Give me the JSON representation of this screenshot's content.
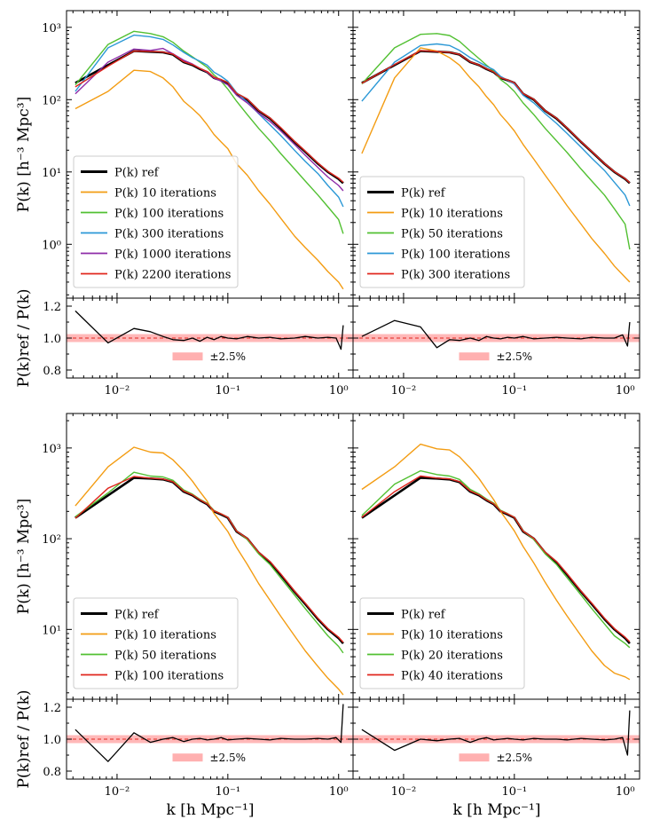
{
  "figure": {
    "ylabel_pk": "P(k) [h⁻³ Mpc³]",
    "ylabel_ratio": "P(k)ref / P(k)",
    "xlabel": "k [h Mpc⁻¹]",
    "band_label": "±2.5%"
  },
  "colors": {
    "ref": "#000000",
    "orange": "#f39c12",
    "green": "#52c032",
    "blue": "#2b98d6",
    "purple": "#8e2ca8",
    "red": "#e0261e",
    "band": "#ffb0b0",
    "dashed": "#e0261e"
  },
  "chart_data": [
    {
      "type": "line",
      "panel": "top-left",
      "xscale": "log",
      "yscale": "log",
      "xlim": [
        0.0035,
        1.35
      ],
      "ylim": [
        0.18,
        1700
      ],
      "yticks": [
        {
          "v": 1,
          "label": "10⁰"
        },
        {
          "v": 10,
          "label": "10¹"
        },
        {
          "v": 100,
          "label": "10²"
        },
        {
          "v": 1000,
          "label": "10³"
        }
      ],
      "legend_loc": "lower-left",
      "x": [
        0.0042,
        0.0083,
        0.0142,
        0.02,
        0.026,
        0.032,
        0.04,
        0.048,
        0.056,
        0.065,
        0.075,
        0.087,
        0.1,
        0.12,
        0.15,
        0.19,
        0.24,
        0.3,
        0.4,
        0.5,
        0.65,
        0.8,
        1.0,
        1.1
      ],
      "series": [
        {
          "name": "P(k) ref",
          "color": "ref",
          "width": 2.6,
          "values": [
            170,
            300,
            470,
            460,
            450,
            420,
            330,
            300,
            265,
            240,
            200,
            185,
            170,
            120,
            100,
            70,
            55,
            40,
            26,
            19,
            13,
            10,
            8,
            7
          ]
        },
        {
          "name": "P(k) 10 iterations",
          "color": "orange",
          "width": 1.4,
          "values": [
            75,
            130,
            255,
            245,
            200,
            150,
            95,
            75,
            60,
            45,
            33,
            26,
            21,
            13,
            9,
            5.5,
            3.6,
            2.3,
            1.3,
            0.9,
            0.6,
            0.42,
            0.3,
            0.24
          ]
        },
        {
          "name": "P(k) 100 iterations",
          "color": "green",
          "width": 1.4,
          "values": [
            160,
            580,
            880,
            820,
            740,
            620,
            470,
            390,
            330,
            280,
            220,
            180,
            140,
            95,
            62,
            40,
            27,
            18,
            11,
            7.5,
            4.8,
            3.3,
            2.2,
            1.4
          ]
        },
        {
          "name": "P(k) 300 iterations",
          "color": "blue",
          "width": 1.4,
          "values": [
            130,
            520,
            780,
            740,
            680,
            570,
            450,
            380,
            340,
            300,
            240,
            210,
            180,
            125,
            92,
            64,
            45,
            32,
            20,
            14,
            9.5,
            6.5,
            4.5,
            3.3
          ]
        },
        {
          "name": "P(k) 1000 iterations",
          "color": "purple",
          "width": 1.4,
          "values": [
            120,
            330,
            500,
            480,
            510,
            430,
            350,
            310,
            270,
            240,
            200,
            180,
            160,
            115,
            90,
            65,
            50,
            37,
            24,
            17,
            11.5,
            8.5,
            6.5,
            5.5
          ]
        },
        {
          "name": "P(k) 2200 iterations",
          "color": "red",
          "width": 1.4,
          "values": [
            150,
            290,
            470,
            465,
            455,
            425,
            335,
            305,
            270,
            245,
            205,
            190,
            172,
            122,
            102,
            71,
            56,
            41,
            26.5,
            19.5,
            13.3,
            10.2,
            8.2,
            7.2
          ]
        }
      ]
    },
    {
      "type": "line",
      "panel": "top-right",
      "xscale": "log",
      "yscale": "log",
      "xlim": [
        0.0035,
        1.35
      ],
      "ylim": [
        0.18,
        1700
      ],
      "legend_loc": "lower-left",
      "x": [
        0.0042,
        0.0083,
        0.0142,
        0.02,
        0.026,
        0.032,
        0.04,
        0.048,
        0.056,
        0.065,
        0.075,
        0.087,
        0.1,
        0.12,
        0.15,
        0.19,
        0.24,
        0.3,
        0.4,
        0.5,
        0.65,
        0.8,
        1.0,
        1.1
      ],
      "series": [
        {
          "name": "P(k) ref",
          "color": "ref",
          "width": 2.6,
          "values": [
            170,
            300,
            470,
            460,
            450,
            420,
            330,
            300,
            265,
            240,
            200,
            185,
            170,
            120,
            100,
            70,
            55,
            40,
            26,
            19,
            13,
            10,
            8,
            7
          ]
        },
        {
          "name": "P(k) 10 iterations",
          "color": "orange",
          "width": 1.4,
          "values": [
            18,
            200,
            520,
            470,
            380,
            300,
            200,
            150,
            110,
            85,
            62,
            48,
            37,
            24,
            15,
            9,
            5.5,
            3.4,
            1.9,
            1.2,
            0.75,
            0.5,
            0.35,
            0.3
          ]
        },
        {
          "name": "P(k) 50 iterations",
          "color": "green",
          "width": 1.4,
          "values": [
            165,
            520,
            800,
            820,
            770,
            640,
            470,
            370,
            300,
            250,
            190,
            160,
            130,
            90,
            62,
            40,
            27,
            18.5,
            11,
            7.5,
            4.8,
            3.1,
            1.9,
            0.85
          ]
        },
        {
          "name": "P(k) 100 iterations",
          "color": "blue",
          "width": 1.4,
          "values": [
            95,
            330,
            560,
            590,
            560,
            480,
            380,
            330,
            290,
            260,
            210,
            185,
            165,
            115,
            90,
            64,
            47,
            34,
            22,
            15.5,
            10.5,
            7.2,
            4.8,
            3.4
          ]
        },
        {
          "name": "P(k) 300 iterations",
          "color": "red",
          "width": 1.4,
          "values": [
            168,
            305,
            475,
            462,
            452,
            422,
            333,
            302,
            267,
            242,
            202,
            187,
            171,
            121,
            101,
            70.5,
            55.5,
            40.5,
            26.2,
            19.2,
            13.1,
            10.1,
            8.1,
            7.1
          ]
        }
      ]
    },
    {
      "type": "line",
      "panel": "bottom-left",
      "xscale": "log",
      "yscale": "log",
      "xlim": [
        0.0035,
        1.35
      ],
      "ylim": [
        1.7,
        2400
      ],
      "yticks": [
        {
          "v": 10,
          "label": "10¹"
        },
        {
          "v": 100,
          "label": "10²"
        },
        {
          "v": 1000,
          "label": "10³"
        }
      ],
      "legend_loc": "lower-left",
      "x": [
        0.0042,
        0.0083,
        0.0142,
        0.02,
        0.026,
        0.032,
        0.04,
        0.048,
        0.056,
        0.065,
        0.075,
        0.087,
        0.1,
        0.12,
        0.15,
        0.19,
        0.24,
        0.3,
        0.4,
        0.5,
        0.65,
        0.8,
        1.0,
        1.1
      ],
      "series": [
        {
          "name": "P(k) ref",
          "color": "ref",
          "width": 2.6,
          "values": [
            170,
            300,
            470,
            460,
            450,
            420,
            330,
            300,
            265,
            240,
            200,
            185,
            170,
            120,
            100,
            70,
            55,
            40,
            26,
            19,
            13,
            10,
            8,
            7
          ]
        },
        {
          "name": "P(k) 10 iterations",
          "color": "orange",
          "width": 1.4,
          "values": [
            230,
            620,
            1020,
            900,
            880,
            740,
            560,
            430,
            330,
            260,
            190,
            150,
            120,
            80,
            52,
            32,
            21,
            14,
            8.5,
            5.8,
            3.9,
            2.9,
            2.2,
            1.9
          ]
        },
        {
          "name": "P(k) 50 iterations",
          "color": "green",
          "width": 1.4,
          "values": [
            175,
            320,
            540,
            490,
            480,
            440,
            345,
            310,
            272,
            246,
            205,
            188,
            172,
            122,
            98,
            68,
            52,
            37,
            24,
            17,
            11.5,
            8.5,
            6.5,
            5.5
          ]
        },
        {
          "name": "P(k) 100 iterations",
          "color": "red",
          "width": 1.4,
          "values": [
            168,
            360,
            485,
            465,
            455,
            425,
            335,
            304,
            268,
            243,
            203,
            188,
            172,
            121,
            101,
            71,
            56,
            41,
            26.5,
            19.5,
            13.3,
            10.2,
            8.2,
            7.2
          ]
        }
      ]
    },
    {
      "type": "line",
      "panel": "bottom-right",
      "xscale": "log",
      "yscale": "log",
      "xlim": [
        0.0035,
        1.35
      ],
      "ylim": [
        1.7,
        2400
      ],
      "legend_loc": "lower-left",
      "x": [
        0.0042,
        0.0083,
        0.0142,
        0.02,
        0.026,
        0.032,
        0.04,
        0.048,
        0.056,
        0.065,
        0.075,
        0.087,
        0.1,
        0.12,
        0.15,
        0.19,
        0.24,
        0.3,
        0.4,
        0.5,
        0.65,
        0.8,
        1.0,
        1.1
      ],
      "series": [
        {
          "name": "P(k) ref",
          "color": "ref",
          "width": 2.6,
          "values": [
            170,
            300,
            470,
            460,
            450,
            420,
            330,
            300,
            265,
            240,
            200,
            185,
            170,
            120,
            100,
            70,
            55,
            40,
            26,
            19,
            13,
            10,
            8,
            7
          ]
        },
        {
          "name": "P(k) 10 iterations",
          "color": "orange",
          "width": 1.4,
          "values": [
            350,
            620,
            1100,
            980,
            950,
            800,
            600,
            460,
            350,
            270,
            200,
            155,
            122,
            82,
            54,
            33,
            21,
            14,
            8.5,
            5.8,
            4,
            3.3,
            3,
            2.8
          ]
        },
        {
          "name": "P(k) 20 iterations",
          "color": "green",
          "width": 1.4,
          "values": [
            180,
            400,
            560,
            510,
            490,
            450,
            350,
            312,
            274,
            247,
            206,
            189,
            172,
            122,
            98,
            68,
            52,
            37,
            24,
            17,
            11.5,
            8.5,
            7,
            6.3
          ]
        },
        {
          "name": "P(k) 40 iterations",
          "color": "red",
          "width": 1.4,
          "values": [
            172,
            330,
            490,
            466,
            456,
            426,
            336,
            305,
            268,
            243,
            203,
            188,
            172,
            121,
            101,
            71,
            56,
            41,
            26.5,
            19.5,
            13.3,
            10.2,
            8.2,
            7.3
          ]
        }
      ]
    },
    {
      "type": "line",
      "panel": "ratio-top-left",
      "xscale": "log",
      "xlim": [
        0.0035,
        1.35
      ],
      "ylim": [
        0.75,
        1.25
      ],
      "yticks": [
        {
          "v": 0.8,
          "label": "0.8"
        },
        {
          "v": 1.0,
          "label": "1.0"
        },
        {
          "v": 1.2,
          "label": "1.2"
        }
      ],
      "band": [
        0.975,
        1.025
      ],
      "x": [
        0.0042,
        0.0083,
        0.0142,
        0.02,
        0.026,
        0.032,
        0.04,
        0.048,
        0.056,
        0.065,
        0.075,
        0.087,
        0.1,
        0.12,
        0.15,
        0.19,
        0.24,
        0.3,
        0.4,
        0.5,
        0.65,
        0.8,
        0.95,
        1.05,
        1.1
      ],
      "values": [
        1.17,
        0.97,
        1.06,
        1.04,
        1.01,
        0.99,
        0.985,
        1.0,
        0.98,
        1.005,
        0.99,
        1.01,
        1.0,
        0.995,
        1.01,
        1.0,
        1.005,
        0.995,
        1.0,
        1.01,
        1.0,
        1.005,
        1.0,
        0.93,
        1.08
      ]
    },
    {
      "type": "line",
      "panel": "ratio-top-right",
      "xscale": "log",
      "xlim": [
        0.0035,
        1.35
      ],
      "ylim": [
        0.75,
        1.25
      ],
      "band": [
        0.975,
        1.025
      ],
      "x": [
        0.0042,
        0.0083,
        0.0142,
        0.02,
        0.026,
        0.032,
        0.04,
        0.048,
        0.056,
        0.065,
        0.075,
        0.087,
        0.1,
        0.12,
        0.15,
        0.19,
        0.24,
        0.3,
        0.4,
        0.5,
        0.65,
        0.8,
        0.95,
        1.05,
        1.1
      ],
      "values": [
        1.01,
        1.11,
        1.07,
        0.94,
        0.99,
        0.985,
        1.0,
        0.985,
        1.01,
        1.0,
        0.995,
        1.005,
        1.0,
        1.01,
        0.995,
        1.0,
        1.005,
        1.0,
        0.995,
        1.005,
        1.0,
        1.0,
        1.02,
        0.95,
        1.1
      ]
    },
    {
      "type": "line",
      "panel": "ratio-bottom-left",
      "xscale": "log",
      "xlim": [
        0.0035,
        1.35
      ],
      "ylim": [
        0.75,
        1.25
      ],
      "yticks": [
        {
          "v": 0.8,
          "label": "0.8"
        },
        {
          "v": 1.0,
          "label": "1.0"
        },
        {
          "v": 1.2,
          "label": "1.2"
        }
      ],
      "band": [
        0.975,
        1.025
      ],
      "x": [
        0.0042,
        0.0083,
        0.0142,
        0.02,
        0.026,
        0.032,
        0.04,
        0.048,
        0.056,
        0.065,
        0.075,
        0.087,
        0.1,
        0.12,
        0.15,
        0.19,
        0.24,
        0.3,
        0.4,
        0.5,
        0.65,
        0.8,
        0.95,
        1.05,
        1.1
      ],
      "values": [
        1.06,
        0.86,
        1.04,
        0.98,
        1.0,
        1.01,
        0.985,
        1.0,
        1.005,
        0.995,
        1.0,
        1.01,
        0.995,
        1.0,
        1.005,
        1.0,
        0.995,
        1.005,
        1.0,
        1.0,
        1.005,
        1.0,
        1.01,
        0.98,
        1.22
      ]
    },
    {
      "type": "line",
      "panel": "ratio-bottom-right",
      "xscale": "log",
      "xlim": [
        0.0035,
        1.35
      ],
      "ylim": [
        0.75,
        1.25
      ],
      "band": [
        0.975,
        1.025
      ],
      "x": [
        0.0042,
        0.0083,
        0.0142,
        0.02,
        0.026,
        0.032,
        0.04,
        0.048,
        0.056,
        0.065,
        0.075,
        0.087,
        0.1,
        0.12,
        0.15,
        0.19,
        0.24,
        0.3,
        0.4,
        0.5,
        0.65,
        0.8,
        0.95,
        1.05,
        1.1
      ],
      "values": [
        1.06,
        0.93,
        1.0,
        0.99,
        1.0,
        1.005,
        0.98,
        1.0,
        1.01,
        0.995,
        1.0,
        1.005,
        1.0,
        0.995,
        1.005,
        1.0,
        1.0,
        0.995,
        1.005,
        1.0,
        0.995,
        1.0,
        1.01,
        0.9,
        1.18
      ]
    }
  ]
}
